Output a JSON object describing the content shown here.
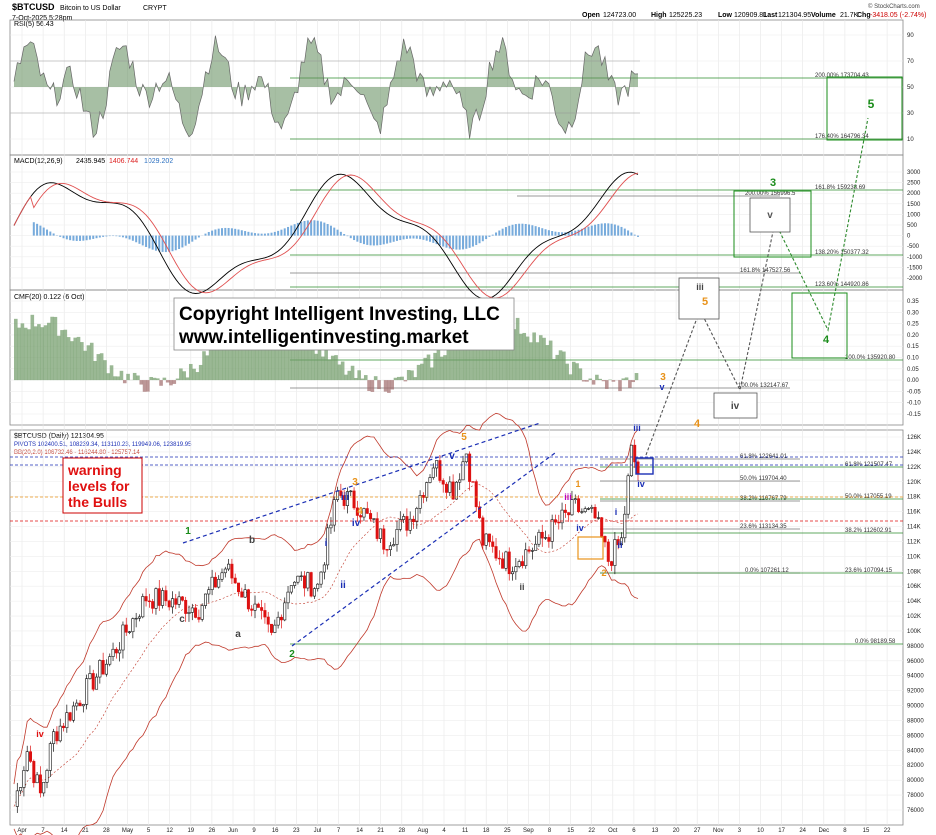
{
  "header": {
    "symbol": "$BTCUSD",
    "description": "Bitcoin to US Dollar",
    "exchange": "CRYPT",
    "date": "7-Oct-2025 5:28pm",
    "watermark": "© StockCharts.com",
    "quote": {
      "open_label": "Open",
      "open": "124723.00",
      "high_label": "High",
      "high": "125225.23",
      "low_label": "Low",
      "low": "120909.81",
      "last_label": "Last",
      "last": "121304.95",
      "volume_label": "Volume",
      "volume": "21.7K",
      "chg_label": "Chg",
      "chg": "-3418.05 (-2.74%)"
    }
  },
  "copyright": {
    "line1": "Copyright Intelligent Investing, LLC",
    "line2": "www.intelligentinvesting.market"
  },
  "warning": {
    "line1": "warning",
    "line2": "levels for",
    "line3": "the Bulls"
  },
  "panels": {
    "rsi": {
      "label": "RSI(5) 56.43",
      "ticks": [
        "90",
        "70",
        "50",
        "30",
        "10"
      ]
    },
    "macd": {
      "label": "MACD(12,26,9)",
      "v1": "2435.945",
      "v2": "1406.744",
      "v3": "1029.202",
      "ticks": [
        "3000",
        "2500",
        "2000",
        "1500",
        "1000",
        "500",
        "0",
        "-500",
        "-1000",
        "-1500",
        "-2000"
      ]
    },
    "cmf": {
      "label": "CMF(20) 0.122 (6 Oct)",
      "ticks": [
        "0.35",
        "0.30",
        "0.25",
        "0.20",
        "0.15",
        "0.10",
        "0.05",
        "0.00",
        "-0.05",
        "-0.10",
        "-0.15"
      ]
    },
    "price": {
      "label": "$BTCUSD (Daily) 121304.95",
      "pivots": "PIVOTS 102400.51, 108239.34, 113110.23, 119949.06, 123819.95",
      "bb": "BB(20,2.0) 106732.46 - 116244.80 - 125757.14",
      "ticks": [
        "126K",
        "124K",
        "122K",
        "120K",
        "118K",
        "116K",
        "114K",
        "112K",
        "110K",
        "108K",
        "106K",
        "104K",
        "102K",
        "100K",
        "98000",
        "96000",
        "94000",
        "92000",
        "90000",
        "88000",
        "86000",
        "84000",
        "82000",
        "80000",
        "78000",
        "76000"
      ]
    }
  },
  "x_axis": [
    "Apr",
    "7",
    "14",
    "21",
    "28",
    "May",
    "5",
    "12",
    "19",
    "26",
    "Jun",
    "9",
    "16",
    "23",
    "Jul",
    "7",
    "14",
    "21",
    "28",
    "Aug",
    "4",
    "11",
    "18",
    "25",
    "Sep",
    "8",
    "15",
    "22",
    "Oct",
    "6",
    "13",
    "20",
    "27",
    "Nov",
    "3",
    "10",
    "17",
    "24",
    "Dec",
    "8",
    "15",
    "22"
  ],
  "fib_labels": [
    "200.00% 173704.43",
    "176.40% 164796.34",
    "161.8% 159238.69",
    "200.00% 156996.5",
    "138.20% 150377.32",
    "161.8% 147527.56",
    "123.60% 144920.86",
    "100.0% 135920.80",
    "100.0% 132147.67",
    "61.8% 122641.01",
    "61.8% 121507.47",
    "50.0% 119704.40",
    "38.2% 116767.79",
    "50.0% 117055.19",
    "23.6% 113134.35",
    "38.2% 112602.91",
    "0.0% 107261.12",
    "23.6% 107094.15",
    "0.0% 98189.58"
  ],
  "wave_labels": {
    "future": [
      "3",
      "4",
      "5",
      "v",
      "iii",
      "iv",
      "5",
      "3",
      "v",
      "4"
    ],
    "history": [
      "1",
      "2",
      "3",
      "4",
      "5",
      "i",
      "ii",
      "iii",
      "iv",
      "v",
      "a",
      "b",
      "c"
    ]
  },
  "colors": {
    "rsi_fill": "#5f8a5a",
    "cmf_pos": "#6f9a66",
    "cmf_neg": "#a06b6b",
    "macd_hist": "#4a8fd0",
    "macd_line": "#000000",
    "macd_signal": "#e05050",
    "bb": "#c0392b",
    "fib": "#2e8b2e",
    "wave_green": "#1a8c1a",
    "wave_orange": "#e8921a",
    "wave_blue": "#1b2fb5",
    "warning": "#e01010"
  },
  "chart_data": {
    "type": "line",
    "title": "$BTCUSD (Daily)",
    "x": [
      "Apr 7",
      "Apr 21",
      "May 5",
      "May 19",
      "Jun 2",
      "Jun 16",
      "Jun 23",
      "Jul 7",
      "Jul 14",
      "Aug 4",
      "Aug 14",
      "Sep 1",
      "Sep 15",
      "Sep 25",
      "Oct 6",
      "Oct 7"
    ],
    "series": [
      {
        "name": "$BTCUSD",
        "values": [
          76500,
          85000,
          96000,
          104000,
          105000,
          104500,
          99000,
          109000,
          119000,
          114000,
          124000,
          108500,
          116000,
          109000,
          125500,
          121305
        ]
      }
    ],
    "ylim": [
      74500,
      127000
    ],
    "last": 121304.95
  }
}
